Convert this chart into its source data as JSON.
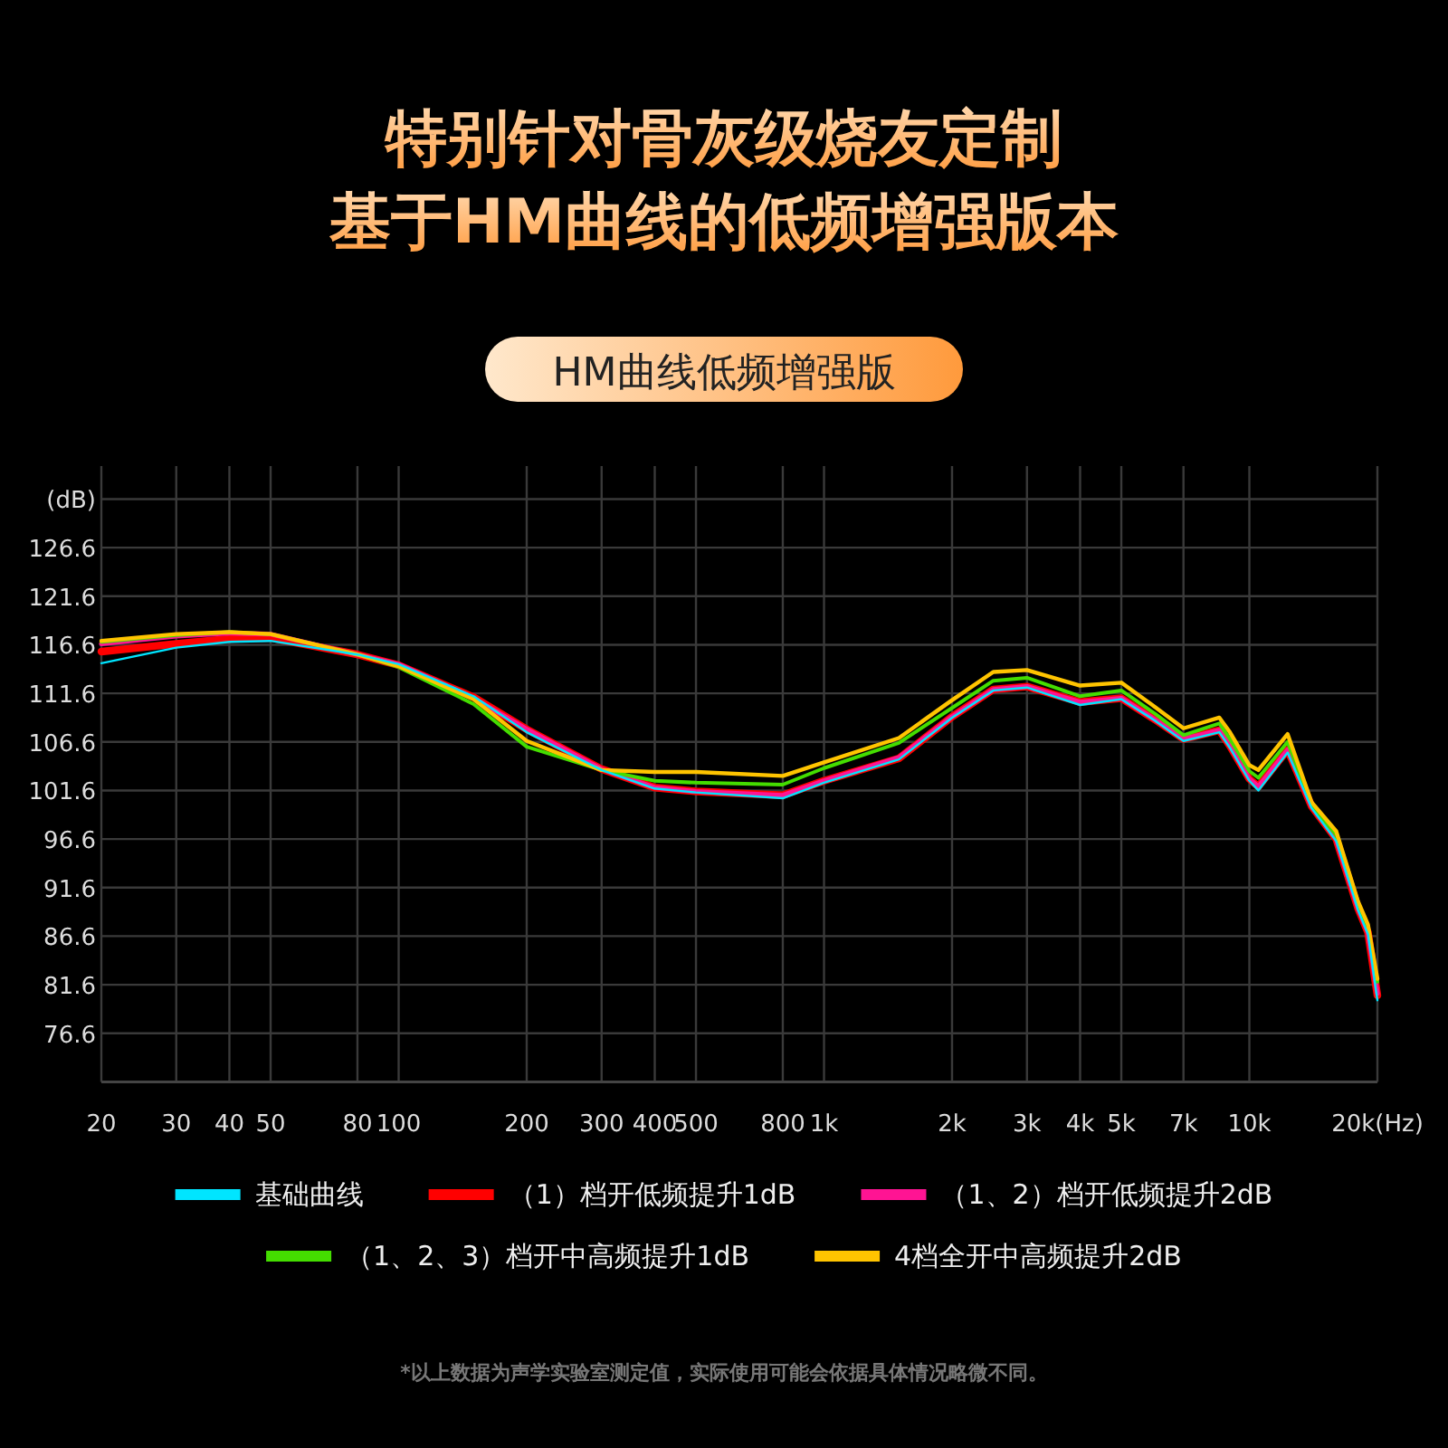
{
  "chart_data": {
    "type": "line",
    "title": "特别针对骨灰级烧友定制",
    "subtitle": "基于HM曲线的低频增强版本",
    "log": "x",
    "grid": true,
    "legend": "bottom",
    "line_style": "solid",
    "marker": "none",
    "xlim": [
      20,
      20000
    ],
    "ylim": [
      71.6,
      135
    ],
    "xticks": [
      20,
      30,
      40,
      50,
      80,
      100,
      200,
      300,
      400,
      500,
      800,
      {
        "value": 1000,
        "label": "1k"
      },
      {
        "value": 2000,
        "label": "2k"
      },
      {
        "value": 3000,
        "label": "3k"
      },
      {
        "value": 4000,
        "label": "4k"
      },
      {
        "value": 5000,
        "label": "5k"
      },
      {
        "value": 7000,
        "label": "7k"
      },
      {
        "value": 10000,
        "label": "10k"
      },
      {
        "value": 20000,
        "label": "20k(Hz)"
      }
    ],
    "yticks": [
      {
        "value": 131.6,
        "label": "(dB)"
      },
      126.6,
      121.6,
      116.6,
      111.6,
      106.6,
      101.6,
      96.6,
      91.6,
      86.6,
      81.6,
      76.6
    ],
    "x": [
      20,
      30,
      40,
      50,
      80,
      100,
      150,
      200,
      300,
      400,
      500,
      800,
      1000,
      1500,
      2000,
      2500,
      3000,
      4000,
      5000,
      6000,
      7000,
      8500,
      9000,
      10000,
      10500,
      12300,
      14000,
      16000,
      18000,
      19000,
      20000
    ],
    "series": [
      {
        "name": "基础曲线",
        "color": "#00e5ff",
        "values": [
          114.7,
          116.3,
          116.9,
          117.0,
          115.6,
          114.6,
          111.3,
          107.6,
          103.7,
          101.8,
          101.4,
          100.8,
          102.4,
          104.8,
          109.1,
          111.9,
          112.2,
          110.4,
          111.0,
          108.8,
          106.7,
          107.6,
          106.0,
          102.6,
          101.6,
          105.5,
          99.8,
          96.4,
          89.3,
          86.8,
          80.0
        ]
      },
      {
        "name": "（1）档开低频提升1dB",
        "color": "#ff0000",
        "values": [
          115.9,
          116.7,
          117.2,
          117.3,
          115.6,
          114.5,
          111.2,
          107.9,
          103.8,
          101.9,
          101.5,
          101.1,
          102.6,
          104.9,
          109.2,
          112.0,
          112.3,
          110.7,
          111.1,
          108.9,
          106.9,
          107.8,
          106.2,
          102.8,
          102.0,
          105.8,
          100.0,
          96.6,
          89.5,
          87.0,
          80.5
        ]
      },
      {
        "name": "（1、2）档开低频提升2dB",
        "color": "#ff1493",
        "values": [
          116.7,
          117.5,
          117.8,
          117.7,
          115.6,
          114.6,
          111.1,
          107.9,
          103.8,
          101.9,
          101.5,
          101.1,
          102.6,
          105.0,
          109.2,
          112.0,
          112.3,
          110.7,
          111.1,
          108.9,
          106.9,
          107.8,
          106.2,
          102.8,
          102.0,
          105.8,
          100.0,
          96.6,
          89.5,
          87.0,
          80.7
        ]
      },
      {
        "name": "（1、2、3）档开中高频提升1dB",
        "color": "#44dd00",
        "values": [
          116.9,
          117.6,
          117.9,
          117.7,
          115.6,
          114.3,
          110.5,
          106.1,
          103.7,
          102.6,
          102.4,
          102.2,
          103.9,
          106.5,
          110.1,
          112.9,
          113.2,
          111.3,
          111.9,
          109.5,
          107.3,
          108.5,
          106.9,
          103.6,
          102.9,
          106.6,
          100.1,
          97.0,
          89.9,
          87.5,
          81.9
        ]
      },
      {
        "name": "4档全开中高频提升2dB",
        "color": "#ffc400",
        "values": [
          117.0,
          117.7,
          117.9,
          117.7,
          115.6,
          114.4,
          111.0,
          106.7,
          103.7,
          103.5,
          103.5,
          103.1,
          104.5,
          107.0,
          110.9,
          113.8,
          114.0,
          112.4,
          112.7,
          110.2,
          108.0,
          109.1,
          107.6,
          104.2,
          103.7,
          107.4,
          100.4,
          97.4,
          90.2,
          87.8,
          82.2
        ]
      }
    ],
    "annotations": [
      "HM曲线低频增强版",
      "*以上数据为声学实验室测定值，实际使用可能会依据具体情况略微不同。"
    ]
  }
}
